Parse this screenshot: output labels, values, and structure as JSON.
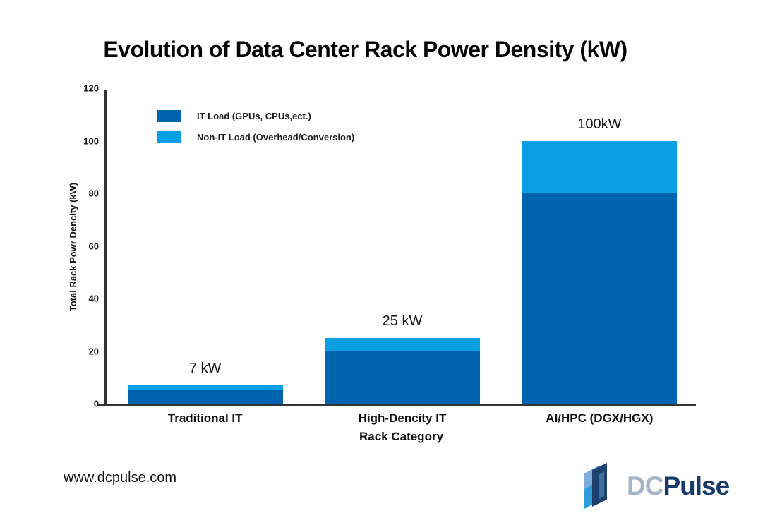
{
  "chart_data": {
    "type": "bar",
    "stacked": true,
    "title": "Evolution of Data Center Rack Power Density (kW)",
    "categories": [
      "Traditional IT",
      "High-Dencity IT",
      "AI/HPC (DGX/HGX)"
    ],
    "series": [
      {
        "name": "IT Load (GPUs, CPUs,ect.)",
        "color": "#0063AD",
        "values": [
          5,
          20,
          80
        ]
      },
      {
        "name": "Non-IT Load (Overhead/Conversion)",
        "color": "#0C9FE3",
        "values": [
          2,
          5,
          20
        ]
      }
    ],
    "totals": [
      7,
      25,
      100
    ],
    "totals_labels": [
      "7 kW",
      "25 kW",
      "100kW"
    ],
    "xlabel": "Rack Category",
    "ylabel": "Total Rack Powr Dencity (kW)",
    "ylim": [
      0,
      120
    ],
    "yticks": [
      0,
      20,
      40,
      60,
      80,
      100,
      120
    ],
    "legend_position": "upper-left",
    "grid": false
  },
  "footer": {
    "website": "www.dcpulse.com",
    "logo": {
      "dc": "DC",
      "pulse": "Pulse"
    }
  },
  "brand": {
    "bar_dark_blue": "#0063AD",
    "bar_light_blue": "#0C9FE3",
    "logo_dc_color": "#A3B4C7",
    "logo_pulse_color": "#173A6A",
    "icon_light": "#6FA3D8",
    "icon_bright": "#2E9BDB",
    "icon_dark": "#1E4170"
  }
}
